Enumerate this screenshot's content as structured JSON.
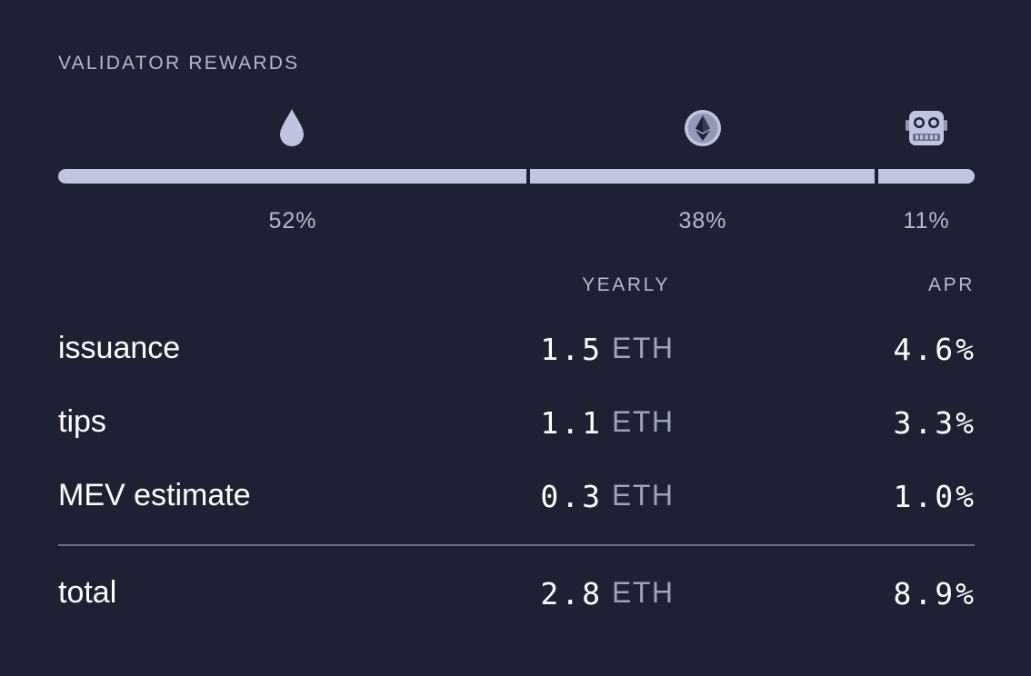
{
  "header": {
    "title": "VALIDATOR REWARDS"
  },
  "breakdown": {
    "segments": [
      {
        "icon": "water-drop-icon",
        "percent_label": "52%",
        "share": 0.52
      },
      {
        "icon": "ethereum-coin-icon",
        "percent_label": "38%",
        "share": 0.38
      },
      {
        "icon": "robot-icon",
        "percent_label": "11%",
        "share": 0.11
      }
    ]
  },
  "table": {
    "columns": {
      "yearly": "YEARLY",
      "apr": "APR"
    },
    "rows": [
      {
        "label": "issuance",
        "yearly": "1.5",
        "unit": "ETH",
        "apr": "4.6%"
      },
      {
        "label": "tips",
        "yearly": "1.1",
        "unit": "ETH",
        "apr": "3.3%"
      },
      {
        "label": "MEV estimate",
        "yearly": "0.3",
        "unit": "ETH",
        "apr": "1.0%"
      }
    ],
    "total": {
      "label": "total",
      "yearly": "2.8",
      "unit": "ETH",
      "apr": "8.9%"
    }
  },
  "colors": {
    "background": "#1e2133",
    "bar": "#c1c4e1",
    "muted_text": "#b5b8cf",
    "unit_text": "#9ea2bd",
    "divider": "#6b6f88"
  }
}
